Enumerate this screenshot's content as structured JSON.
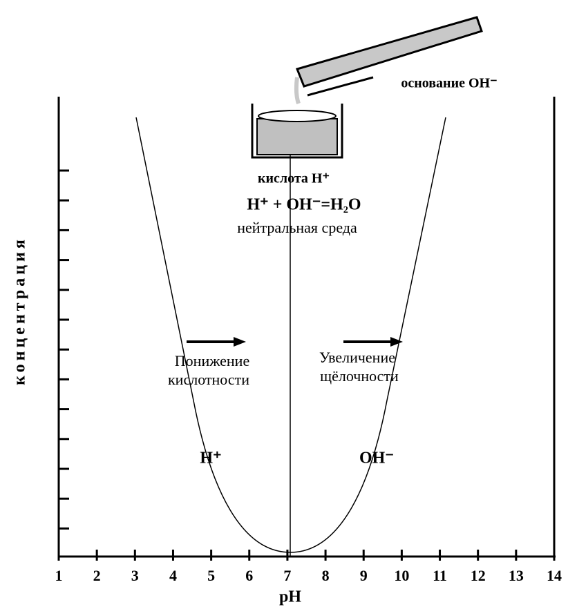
{
  "axes": {
    "x_label": "pH",
    "y_label": "концентрация",
    "x_ticks": [
      "1",
      "2",
      "3",
      "4",
      "5",
      "6",
      "7",
      "8",
      "9",
      "10",
      "11",
      "12",
      "13",
      "14"
    ]
  },
  "labels": {
    "base": "основание OH⁻",
    "acid": "кислота H⁺",
    "reaction": "H⁺ + OH⁻=H₂O",
    "neutral": "нейтральная среда",
    "acid_decrease": [
      "Понижение",
      "кислотности"
    ],
    "alkali_increase": [
      "Увеличение",
      "щёлочности"
    ],
    "h_curve": "H⁺",
    "oh_curve": "OH⁻"
  }
}
